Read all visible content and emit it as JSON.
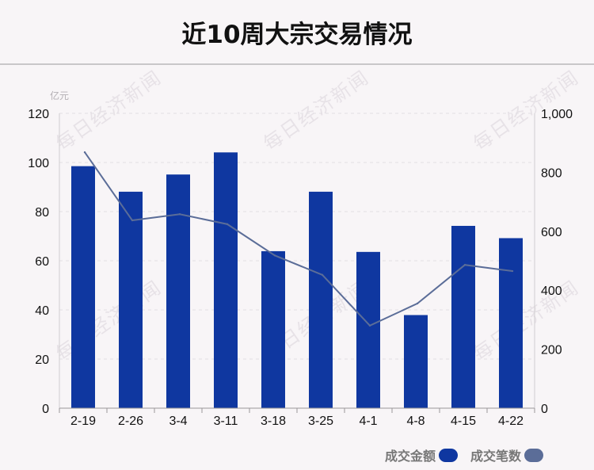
{
  "title": "近10周大宗交易情况",
  "watermark": "每日经济新闻",
  "colors": {
    "bar": "#0f37a0",
    "line": "#5b6d98",
    "background": "#f8f5f7"
  },
  "chart_data": {
    "type": "bar",
    "title": "近10周大宗交易情况",
    "categories": [
      "2-19",
      "2-26",
      "3-4",
      "3-11",
      "3-18",
      "3-25",
      "4-1",
      "4-8",
      "4-15",
      "4-22"
    ],
    "left_axis": {
      "unit": "亿元",
      "ylim": [
        0,
        120
      ],
      "ticks": [
        "0",
        "20",
        "40",
        "60",
        "80",
        "100",
        "120"
      ]
    },
    "right_axis": {
      "ylim": [
        0,
        1000
      ],
      "ticks": [
        "0",
        "200",
        "400",
        "600",
        "800",
        "1,000"
      ]
    },
    "series": [
      {
        "name": "成交金额",
        "type": "bar",
        "axis": "left",
        "color": "#0f37a0",
        "values": [
          98.5,
          88.1,
          95.1,
          104.1,
          63.9,
          88.1,
          63.6,
          37.9,
          74.2,
          69.2
        ]
      },
      {
        "name": "成交笔数",
        "type": "line",
        "axis": "right",
        "color": "#5b6d98",
        "values": [
          868,
          637,
          658,
          624,
          518,
          452,
          280,
          355,
          486,
          465
        ]
      }
    ],
    "grid": true,
    "legend_position": "bottom-right"
  }
}
